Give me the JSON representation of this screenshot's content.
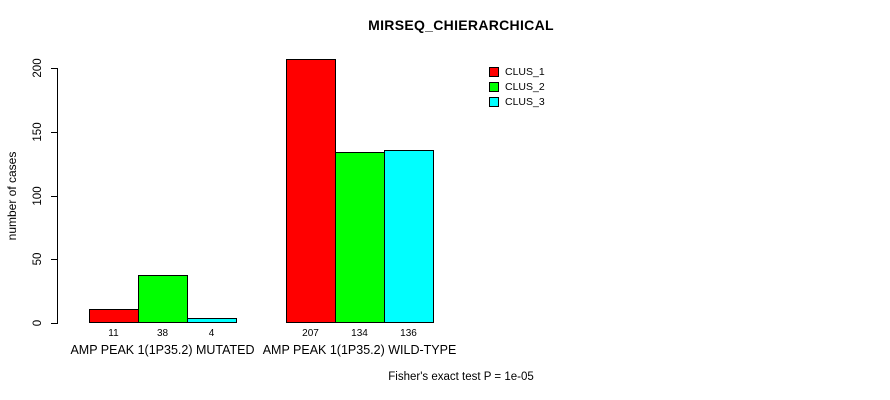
{
  "chart_data": {
    "type": "bar",
    "title": "MIRSEQ_CHIERARCHICAL",
    "ylabel": "number of cases",
    "xlabel": "",
    "categories": [
      "AMP PEAK 1(1P35.2) MUTATED",
      "AMP PEAK 1(1P35.2) WILD-TYPE"
    ],
    "series": [
      {
        "name": "CLUS_1",
        "color": "#FF0000",
        "values": [
          11,
          207
        ]
      },
      {
        "name": "CLUS_2",
        "color": "#00FF00",
        "values": [
          38,
          134
        ]
      },
      {
        "name": "CLUS_3",
        "color": "#00FFFF",
        "values": [
          4,
          136
        ]
      }
    ],
    "ylim": [
      0,
      200
    ],
    "yticks": [
      0,
      50,
      100,
      150,
      200
    ],
    "grid": false,
    "bar_value_labels": true,
    "legend_position": "top-right-inside",
    "footer": "Fisher's exact test P = 1e-05",
    "background": "#FFFFFF",
    "axis_color": "#000000"
  }
}
